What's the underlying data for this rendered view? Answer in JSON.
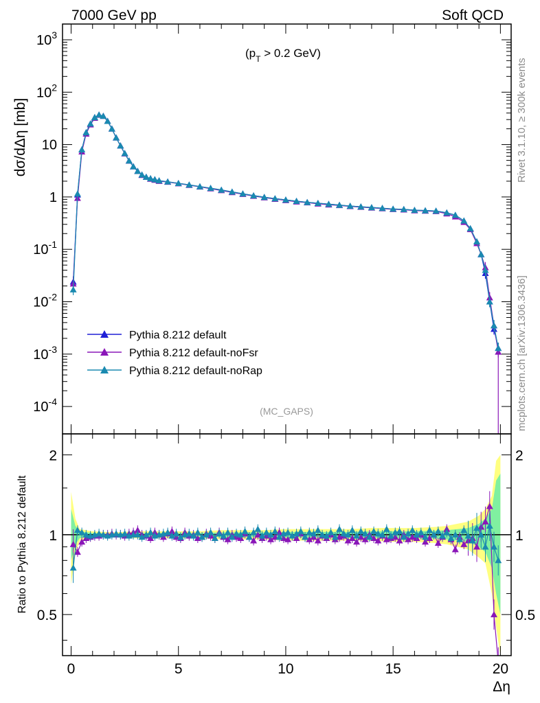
{
  "header": {
    "left_label": "7000 GeV pp",
    "right_label": "Soft QCD"
  },
  "side_labels": {
    "rivet": "Rivet 3.1.10, ≥ 300k events",
    "mcplots": "mcplots.cern.ch [arXiv:1306.3436]"
  },
  "colors": {
    "default": "#1f1fd6",
    "noFsr": "#8a16b8",
    "noRap": "#1a8ab0",
    "band_yellow": "#ffff80",
    "band_green": "#80f0a0"
  },
  "chart_data": [
    {
      "type": "line",
      "subtitle": "(p_T > 0.2 GeV)",
      "subtitle_main": "(p",
      "subtitle_sub": "T",
      "subtitle_rest": " > 0.2 GeV)",
      "ylabel": "dσ/dΔη [mb]",
      "analysis_tag": "(MC_GAPS)",
      "yscale": "log",
      "xlim": [
        -0.4,
        20.5
      ],
      "ylim": [
        3e-05,
        2000
      ],
      "ytick_labels": [
        "10^-4",
        "10^-3",
        "10^-2",
        "10^-1",
        "1",
        "10",
        "10^2",
        "10^3"
      ],
      "legend_position": "lower-left",
      "series": [
        {
          "name": "Pythia 8.212 default",
          "color": "#1f1fd6",
          "x": [
            0.1,
            0.3,
            0.5,
            0.7,
            0.9,
            1.1,
            1.3,
            1.5,
            1.7,
            1.9,
            2.1,
            2.3,
            2.5,
            2.7,
            2.9,
            3.1,
            3.3,
            3.5,
            3.7,
            3.9,
            4.1,
            4.5,
            5.0,
            5.5,
            6.0,
            6.5,
            7.0,
            7.5,
            8.0,
            8.5,
            9.0,
            9.5,
            10.0,
            10.5,
            11.0,
            11.5,
            12.0,
            12.5,
            13.0,
            13.5,
            14.0,
            14.5,
            15.0,
            15.5,
            16.0,
            16.5,
            17.0,
            17.5,
            17.9,
            18.3,
            18.6,
            18.9,
            19.1,
            19.3,
            19.5,
            19.7,
            19.9
          ],
          "values": [
            0.024,
            1.1,
            8.0,
            17.0,
            25.0,
            33.0,
            37.0,
            35.0,
            28.0,
            20.0,
            13.5,
            9.5,
            6.8,
            4.9,
            3.8,
            3.1,
            2.65,
            2.4,
            2.25,
            2.15,
            2.05,
            1.95,
            1.82,
            1.7,
            1.58,
            1.47,
            1.36,
            1.25,
            1.15,
            1.06,
            0.99,
            0.93,
            0.88,
            0.83,
            0.79,
            0.76,
            0.73,
            0.7,
            0.67,
            0.65,
            0.63,
            0.61,
            0.59,
            0.58,
            0.56,
            0.55,
            0.54,
            0.5,
            0.45,
            0.35,
            0.25,
            0.14,
            0.08,
            0.035,
            0.01,
            0.003,
            0.0013
          ]
        },
        {
          "name": "Pythia 8.212 default-noFsr",
          "color": "#8a16b8",
          "x": [
            0.1,
            0.3,
            0.5,
            0.7,
            0.9,
            1.1,
            1.3,
            1.5,
            1.7,
            1.9,
            2.1,
            2.3,
            2.5,
            2.7,
            2.9,
            3.1,
            3.3,
            3.5,
            3.7,
            3.9,
            4.1,
            4.5,
            5.0,
            5.5,
            6.0,
            6.5,
            7.0,
            7.5,
            8.0,
            8.5,
            9.0,
            9.5,
            10.0,
            10.5,
            11.0,
            11.5,
            12.0,
            12.5,
            13.0,
            13.5,
            14.0,
            14.5,
            15.0,
            15.5,
            16.0,
            16.5,
            17.0,
            17.5,
            17.9,
            18.3,
            18.6,
            18.9,
            19.1,
            19.3,
            19.5,
            19.7,
            19.9
          ],
          "values": [
            0.022,
            0.95,
            7.3,
            16.0,
            24.0,
            32.0,
            36.5,
            35.0,
            28.0,
            20.0,
            13.5,
            9.5,
            6.7,
            4.9,
            3.8,
            3.1,
            2.6,
            2.4,
            2.2,
            2.1,
            2.0,
            1.93,
            1.8,
            1.68,
            1.56,
            1.44,
            1.33,
            1.22,
            1.13,
            1.04,
            0.97,
            0.91,
            0.86,
            0.81,
            0.78,
            0.74,
            0.71,
            0.69,
            0.66,
            0.64,
            0.62,
            0.6,
            0.58,
            0.57,
            0.55,
            0.54,
            0.53,
            0.48,
            0.42,
            0.33,
            0.24,
            0.13,
            0.08,
            0.045,
            0.012,
            0.0035,
            0.0011
          ]
        },
        {
          "name": "Pythia 8.212 default-noRap",
          "color": "#1a8ab0",
          "x": [
            0.1,
            0.3,
            0.5,
            0.7,
            0.9,
            1.1,
            1.3,
            1.5,
            1.7,
            1.9,
            2.1,
            2.3,
            2.5,
            2.7,
            2.9,
            3.1,
            3.3,
            3.5,
            3.7,
            3.9,
            4.1,
            4.5,
            5.0,
            5.5,
            6.0,
            6.5,
            7.0,
            7.5,
            8.0,
            8.5,
            9.0,
            9.5,
            10.0,
            10.5,
            11.0,
            11.5,
            12.0,
            12.5,
            13.0,
            13.5,
            14.0,
            14.5,
            15.0,
            15.5,
            16.0,
            16.5,
            17.0,
            17.5,
            17.9,
            18.3,
            18.6,
            18.9,
            19.1,
            19.3,
            19.5,
            19.7,
            19.9
          ],
          "values": [
            0.017,
            1.15,
            8.0,
            17.0,
            25.0,
            33.0,
            37.0,
            35.0,
            28.0,
            20.0,
            13.5,
            9.5,
            6.8,
            4.9,
            3.8,
            3.1,
            2.65,
            2.4,
            2.25,
            2.15,
            2.05,
            1.95,
            1.82,
            1.7,
            1.58,
            1.47,
            1.36,
            1.25,
            1.15,
            1.06,
            0.99,
            0.93,
            0.88,
            0.83,
            0.79,
            0.76,
            0.73,
            0.7,
            0.67,
            0.65,
            0.63,
            0.61,
            0.59,
            0.58,
            0.56,
            0.55,
            0.54,
            0.5,
            0.45,
            0.35,
            0.25,
            0.14,
            0.08,
            0.04,
            0.01,
            0.0035,
            0.0013
          ]
        }
      ]
    },
    {
      "type": "line",
      "ylabel": "Ratio to Pythia 8.212 default",
      "xlabel": "Δη",
      "xlim": [
        -0.4,
        20.5
      ],
      "ylim": [
        0.35,
        2.4
      ],
      "xtick_labels": [
        "0",
        "5",
        "10",
        "15",
        "20"
      ],
      "ytick_labels": [
        "0.5",
        "1",
        "2"
      ],
      "reference_line": 1,
      "band": {
        "x": [
          0.0,
          0.2,
          0.4,
          1.0,
          2.0,
          3.0,
          4.0,
          5.0,
          6.0,
          7.0,
          8.0,
          9.0,
          10.0,
          11.0,
          12.0,
          13.0,
          14.0,
          15.0,
          16.0,
          17.0,
          17.5,
          18.0,
          18.5,
          19.0,
          19.3,
          19.6,
          19.8,
          20.0
        ],
        "yellow_lo": [
          0.65,
          0.85,
          0.95,
          0.97,
          0.98,
          0.97,
          0.97,
          0.97,
          0.97,
          0.96,
          0.96,
          0.96,
          0.95,
          0.95,
          0.95,
          0.95,
          0.95,
          0.94,
          0.94,
          0.93,
          0.92,
          0.9,
          0.88,
          0.82,
          0.78,
          0.6,
          0.45,
          0.35
        ],
        "yellow_hi": [
          1.45,
          1.15,
          1.05,
          1.03,
          1.02,
          1.03,
          1.03,
          1.03,
          1.03,
          1.04,
          1.04,
          1.04,
          1.05,
          1.05,
          1.05,
          1.05,
          1.06,
          1.06,
          1.06,
          1.07,
          1.08,
          1.1,
          1.12,
          1.18,
          1.25,
          1.4,
          1.9,
          2.0
        ],
        "green_lo": [
          0.8,
          0.92,
          0.97,
          0.985,
          0.99,
          0.985,
          0.985,
          0.985,
          0.985,
          0.98,
          0.98,
          0.98,
          0.975,
          0.975,
          0.975,
          0.975,
          0.975,
          0.97,
          0.97,
          0.965,
          0.96,
          0.95,
          0.94,
          0.9,
          0.86,
          0.75,
          0.6,
          0.5
        ],
        "green_hi": [
          1.25,
          1.08,
          1.03,
          1.015,
          1.01,
          1.015,
          1.015,
          1.015,
          1.015,
          1.02,
          1.02,
          1.02,
          1.025,
          1.025,
          1.025,
          1.025,
          1.03,
          1.03,
          1.03,
          1.035,
          1.04,
          1.05,
          1.06,
          1.1,
          1.15,
          1.25,
          1.6,
          1.7
        ]
      },
      "series": [
        {
          "name": "Pythia 8.212 default-noFsr",
          "color": "#8a16b8",
          "x": [
            0.1,
            0.3,
            0.5,
            0.7,
            0.9,
            1.1,
            1.3,
            1.5,
            1.7,
            1.9,
            2.1,
            2.3,
            2.5,
            2.7,
            2.9,
            3.1,
            3.3,
            3.5,
            3.7,
            3.9,
            4.1,
            4.3,
            4.5,
            4.7,
            4.9,
            5.1,
            5.3,
            5.5,
            5.7,
            5.9,
            6.1,
            6.3,
            6.5,
            6.7,
            6.9,
            7.1,
            7.3,
            7.5,
            7.7,
            7.9,
            8.1,
            8.3,
            8.5,
            8.7,
            8.9,
            9.1,
            9.3,
            9.5,
            9.7,
            9.9,
            10.1,
            10.3,
            10.5,
            10.7,
            10.9,
            11.1,
            11.3,
            11.5,
            11.7,
            11.9,
            12.1,
            12.3,
            12.5,
            12.7,
            12.9,
            13.1,
            13.3,
            13.5,
            13.7,
            13.9,
            14.1,
            14.3,
            14.5,
            14.7,
            14.9,
            15.1,
            15.3,
            15.5,
            15.7,
            15.9,
            16.1,
            16.3,
            16.5,
            16.7,
            16.9,
            17.1,
            17.3,
            17.5,
            17.7,
            17.9,
            18.1,
            18.3,
            18.5,
            18.7,
            18.9,
            19.1,
            19.3,
            19.5,
            19.7,
            19.9
          ],
          "values": [
            0.92,
            0.86,
            0.94,
            0.97,
            0.98,
            0.99,
            0.99,
            1.0,
            1.0,
            1.01,
            1.0,
            1.0,
            0.99,
            1.01,
            1.02,
            1.04,
            1.0,
            0.99,
            0.97,
            1.02,
            1.0,
            0.98,
            1.01,
            1.03,
            0.98,
            0.97,
            1.02,
            0.99,
            1.0,
            0.97,
            0.98,
            1.01,
            0.99,
            0.97,
            1.02,
            0.98,
            0.96,
            1.0,
            0.98,
            0.97,
            1.01,
            0.98,
            0.95,
            1.0,
            0.97,
            0.99,
            0.96,
            0.98,
            1.02,
            0.97,
            0.96,
            0.99,
            0.97,
            1.01,
            0.98,
            0.96,
            0.98,
            0.95,
            0.99,
            0.97,
            1.0,
            0.96,
            0.98,
            0.99,
            0.95,
            0.97,
            0.94,
            0.98,
            0.96,
            1.0,
            0.97,
            0.95,
            0.99,
            0.96,
            0.97,
            0.98,
            0.95,
            1.0,
            0.96,
            0.98,
            0.97,
            1.0,
            0.94,
            0.97,
            1.0,
            0.93,
            0.98,
            1.05,
            0.96,
            0.88,
            0.98,
            0.92,
            0.95,
            0.97,
            0.9,
            1.07,
            1.12,
            1.28,
            0.5,
            0.33
          ]
        },
        {
          "name": "Pythia 8.212 default-noRap",
          "color": "#1a8ab0",
          "x": [
            0.1,
            0.3,
            0.5,
            0.7,
            0.9,
            1.1,
            1.3,
            1.5,
            1.7,
            1.9,
            2.1,
            2.3,
            2.5,
            2.7,
            2.9,
            3.1,
            3.3,
            3.5,
            3.7,
            3.9,
            4.1,
            4.3,
            4.5,
            4.7,
            4.9,
            5.1,
            5.3,
            5.5,
            5.7,
            5.9,
            6.1,
            6.3,
            6.5,
            6.7,
            6.9,
            7.1,
            7.3,
            7.5,
            7.7,
            7.9,
            8.1,
            8.3,
            8.5,
            8.7,
            8.9,
            9.1,
            9.3,
            9.5,
            9.7,
            9.9,
            10.1,
            10.3,
            10.5,
            10.7,
            10.9,
            11.1,
            11.3,
            11.5,
            11.7,
            11.9,
            12.1,
            12.3,
            12.5,
            12.7,
            12.9,
            13.1,
            13.3,
            13.5,
            13.7,
            13.9,
            14.1,
            14.3,
            14.5,
            14.7,
            14.9,
            15.1,
            15.3,
            15.5,
            15.7,
            15.9,
            16.1,
            16.3,
            16.5,
            16.7,
            16.9,
            17.1,
            17.3,
            17.5,
            17.7,
            17.9,
            18.1,
            18.3,
            18.5,
            18.7,
            18.9,
            19.1,
            19.3,
            19.5,
            19.7,
            19.9
          ],
          "values": [
            0.75,
            1.04,
            1.02,
            1.0,
            0.99,
            1.0,
            1.01,
            1.0,
            0.99,
            1.0,
            1.01,
            1.0,
            1.01,
            0.99,
            1.0,
            1.0,
            0.98,
            1.0,
            1.02,
            0.99,
            1.0,
            1.01,
            1.02,
            0.99,
            1.01,
            0.98,
            1.0,
            1.01,
            0.99,
            1.02,
            0.98,
            1.0,
            1.02,
            0.97,
            1.01,
            0.99,
            1.02,
            0.98,
            1.01,
            1.0,
            1.03,
            0.98,
            1.02,
            1.05,
            0.99,
            1.02,
            1.0,
            1.03,
            0.98,
            1.01,
            1.02,
            0.99,
            1.01,
            1.03,
            0.98,
            1.02,
            1.01,
            1.04,
            1.0,
            0.99,
            1.02,
            0.98,
            1.05,
            1.01,
            1.0,
            1.04,
            0.99,
            1.03,
            1.01,
            0.98,
            1.03,
            1.01,
            1.0,
            1.05,
            0.99,
            1.02,
            1.03,
            0.98,
            1.01,
            1.04,
            1.0,
            1.02,
            0.98,
            1.04,
            1.0,
            1.03,
            0.99,
            1.02,
            0.97,
            1.0,
            0.96,
            1.04,
            0.99,
            0.95,
            1.06,
            1.0,
            0.9,
            1.08,
            0.9,
            0.8
          ]
        }
      ]
    }
  ]
}
